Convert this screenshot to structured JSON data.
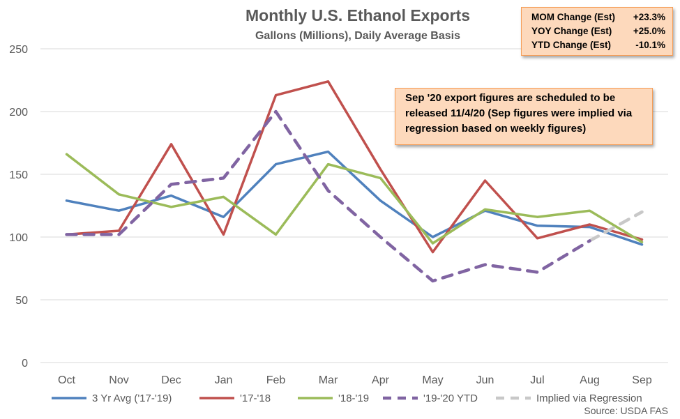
{
  "chart_data": {
    "type": "line",
    "title": "Monthly U.S. Ethanol Exports",
    "subtitle": "Gallons (Millions), Daily Average Basis",
    "categories": [
      "Oct",
      "Nov",
      "Dec",
      "Jan",
      "Feb",
      "Mar",
      "Apr",
      "May",
      "Jun",
      "Jul",
      "Aug",
      "Sep"
    ],
    "ylim": [
      0,
      250
    ],
    "yticks": [
      0,
      50,
      100,
      150,
      200,
      250
    ],
    "grid": true,
    "legend_position": "bottom",
    "series": [
      {
        "name": "3 Yr Avg ('17-'19)",
        "color": "#4f81bd",
        "style": "solid",
        "values": [
          129,
          121,
          133,
          116,
          158,
          168,
          129,
          100,
          121,
          109,
          108,
          94
        ]
      },
      {
        "name": "'17-'18",
        "color": "#c0504d",
        "style": "solid",
        "values": [
          102,
          105,
          174,
          102,
          213,
          224,
          154,
          88,
          145,
          99,
          110,
          98
        ]
      },
      {
        "name": "'18-'19",
        "color": "#9bbb59",
        "style": "solid",
        "values": [
          166,
          134,
          124,
          132,
          102,
          158,
          147,
          95,
          122,
          116,
          121,
          96
        ]
      },
      {
        "name": "'19-'20 YTD",
        "color": "#8064a2",
        "style": "dashed",
        "values": [
          102,
          102,
          142,
          147,
          200,
          137,
          100,
          65,
          78,
          72,
          97,
          null
        ]
      },
      {
        "name": "Implied via Regression",
        "color": "#c8c8c8",
        "style": "dashed",
        "values": [
          null,
          null,
          null,
          null,
          null,
          null,
          null,
          null,
          null,
          null,
          97,
          120
        ]
      }
    ],
    "source": "Source: USDA FAS"
  },
  "stats_box": [
    {
      "label": "MOM Change (Est)",
      "value": "+23.3%"
    },
    {
      "label": "YOY Change (Est)",
      "value": "+25.0%"
    },
    {
      "label": "YTD Change (Est)",
      "value": "-10.1%"
    }
  ],
  "note_box": "Sep '20 export figures are scheduled to be released 11/4/20 (Sep figures were implied via regression based on weekly figures)"
}
